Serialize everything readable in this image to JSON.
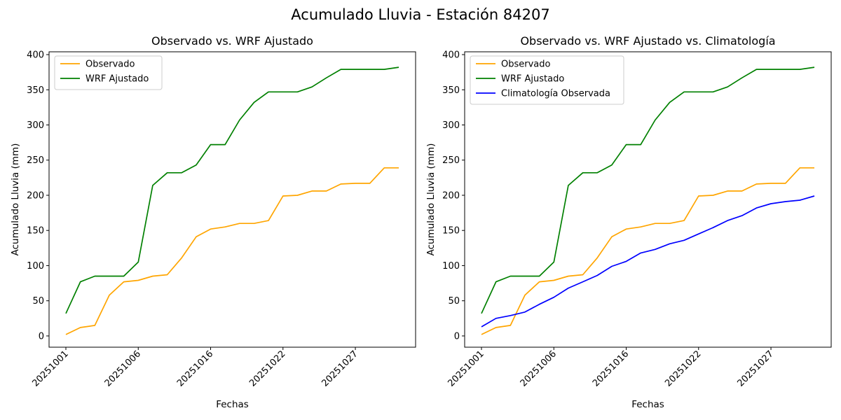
{
  "figure_title": "Acumulado Lluvia - Estación 84207",
  "colors": {
    "observado": "#ffa500",
    "wrf": "#008000",
    "climatologia": "#0000ff"
  },
  "chart_data": [
    {
      "type": "line",
      "title": "Observado vs. WRF Ajustado",
      "xlabel": "Fechas",
      "ylabel": "Acumulado Lluvia (mm)",
      "x_tick_labels": [
        "20251001",
        "20251006",
        "20251016",
        "20251022",
        "20251027"
      ],
      "y_ticks": [
        0,
        50,
        100,
        150,
        200,
        250,
        300,
        350,
        400
      ],
      "ylim": [
        -16,
        404
      ],
      "legend_position": "upper-left",
      "series": [
        {
          "name": "Observado",
          "color": "#ffa500",
          "values": [
            2,
            12,
            15,
            58,
            77,
            79,
            85,
            87,
            111,
            141,
            152,
            155,
            160,
            160,
            164,
            199,
            200,
            206,
            206,
            216,
            217,
            217,
            239,
            239
          ]
        },
        {
          "name": "WRF Ajustado",
          "color": "#008000",
          "values": [
            32,
            77,
            85,
            85,
            85,
            105,
            214,
            232,
            232,
            243,
            272,
            272,
            307,
            332,
            347,
            347,
            347,
            354,
            367,
            379,
            379,
            379,
            379,
            382
          ]
        }
      ]
    },
    {
      "type": "line",
      "title": "Observado vs. WRF Ajustado vs. Climatología",
      "xlabel": "Fechas",
      "ylabel": "Acumulado Lluvia (mm)",
      "x_tick_labels": [
        "20251001",
        "20251006",
        "20251016",
        "20251022",
        "20251027"
      ],
      "y_ticks": [
        0,
        50,
        100,
        150,
        200,
        250,
        300,
        350,
        400
      ],
      "ylim": [
        -16,
        404
      ],
      "legend_position": "upper-left",
      "series": [
        {
          "name": "Observado",
          "color": "#ffa500",
          "values": [
            2,
            12,
            15,
            58,
            77,
            79,
            85,
            87,
            111,
            141,
            152,
            155,
            160,
            160,
            164,
            199,
            200,
            206,
            206,
            216,
            217,
            217,
            239,
            239
          ]
        },
        {
          "name": "WRF Ajustado",
          "color": "#008000",
          "values": [
            32,
            77,
            85,
            85,
            85,
            105,
            214,
            232,
            232,
            243,
            272,
            272,
            307,
            332,
            347,
            347,
            347,
            354,
            367,
            379,
            379,
            379,
            379,
            382
          ]
        },
        {
          "name": "Climatología Observada",
          "color": "#0000ff",
          "values": [
            13,
            25,
            29,
            34,
            45,
            55,
            68,
            77,
            86,
            99,
            106,
            118,
            123,
            131,
            136,
            145,
            154,
            164,
            171,
            182,
            188,
            191,
            193,
            199
          ]
        }
      ]
    }
  ]
}
